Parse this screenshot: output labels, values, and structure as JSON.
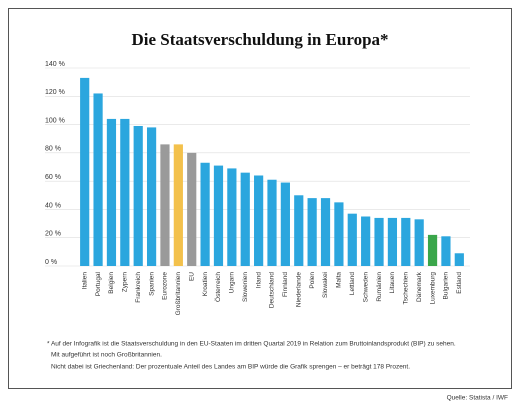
{
  "chart_data": {
    "type": "bar",
    "title": "Die Staatsverschuldung in Europa*",
    "categories": [
      "Italien",
      "Portugal",
      "Belgien",
      "Zypern",
      "Frankreich",
      "Spanien",
      "Eurozone",
      "Großbritannien",
      "EU",
      "Kroatien",
      "Österreich",
      "Ungarn",
      "Slowenien",
      "Irland",
      "Deutschland",
      "Finnland",
      "Niederlande",
      "Polen",
      "Slowakei",
      "Malta",
      "Lettland",
      "Schweden",
      "Rumänien",
      "Litauen",
      "Tschechien",
      "Dänemark",
      "Luxemburg",
      "Bulgarien",
      "Estland"
    ],
    "values": [
      133,
      122,
      104,
      104,
      99,
      98,
      86,
      86,
      80,
      73,
      71,
      69,
      66,
      64,
      61,
      59,
      50,
      48,
      48,
      45,
      37,
      35,
      34,
      34,
      34,
      33,
      22,
      21,
      9
    ],
    "colors": [
      "#2ba6de",
      "#2ba6de",
      "#2ba6de",
      "#2ba6de",
      "#2ba6de",
      "#2ba6de",
      "#9a9a9a",
      "#f3c14c",
      "#9a9a9a",
      "#2ba6de",
      "#2ba6de",
      "#2ba6de",
      "#2ba6de",
      "#2ba6de",
      "#2ba6de",
      "#2ba6de",
      "#2ba6de",
      "#2ba6de",
      "#2ba6de",
      "#2ba6de",
      "#2ba6de",
      "#2ba6de",
      "#2ba6de",
      "#2ba6de",
      "#2ba6de",
      "#2ba6de",
      "#3aa64a",
      "#2ba6de",
      "#2ba6de"
    ],
    "ylim": [
      0,
      140
    ],
    "yticks": [
      {
        "value": 0,
        "label": "0 %"
      },
      {
        "value": 20,
        "label": "20 %"
      },
      {
        "value": 40,
        "label": "40 %"
      },
      {
        "value": 60,
        "label": "60 %"
      },
      {
        "value": 80,
        "label": "80 %"
      },
      {
        "value": 100,
        "label": "100 %"
      },
      {
        "value": 120,
        "label": "120 %"
      },
      {
        "value": 140,
        "label": "140 %"
      }
    ],
    "grid": true,
    "notes": [
      "* Auf der Infografik ist die Staatsverschuldung in den EU-Staaten im dritten Quartal 2019 in Relation zum Bruttoinlandsprodukt (BIP) zu sehen.",
      "Mit aufgeführt ist noch Großbritannien.",
      "Nicht dabei ist Griechenland: Der prozentuale Anteil des Landes am BIP würde die Grafik sprengen – er beträgt 178 Prozent."
    ],
    "source": "Quelle: Statista / IWF"
  }
}
